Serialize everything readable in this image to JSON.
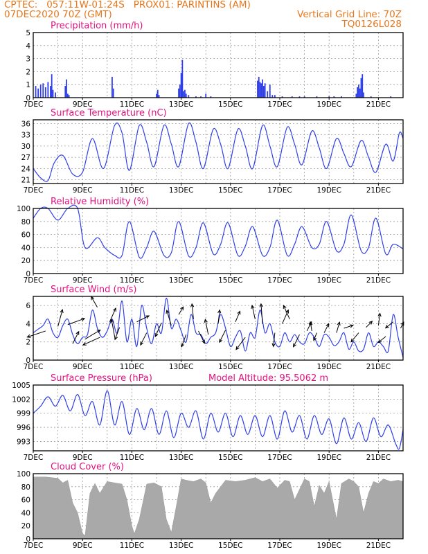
{
  "header": {
    "left_line1": "CPTEC:   057:11W-01:24S   PROX01: PARINTINS (AM)",
    "left_line2": "07DEC2020 70Z (GMT)",
    "right_line2": "Vertical Grid Line: 70Z",
    "right_line3": "TQ0126L028"
  },
  "colors": {
    "header": "#e8761a",
    "title": "#e0117f",
    "series": "#2f3fe8",
    "cloud": "#a9a9a9",
    "arrow": "#000000"
  },
  "chart_data": [
    {
      "type": "bar",
      "title": "Precipitation (mm/h)",
      "x_tick_labels": [
        "7DEC",
        "9DEC",
        "11DEC",
        "13DEC",
        "15DEC",
        "17DEC",
        "19DEC",
        "21DEC"
      ],
      "x_range_days": [
        7,
        22
      ],
      "ylim": [
        0,
        5
      ],
      "y_ticks": [
        "0",
        "1",
        "2",
        "3",
        "4",
        "5"
      ],
      "grid": true,
      "x": [
        7.1,
        7.2,
        7.3,
        7.4,
        7.5,
        7.6,
        7.7,
        7.75,
        7.8,
        7.9,
        8.3,
        8.35,
        8.4,
        8.45,
        10.2,
        10.25,
        12.0,
        12.05,
        12.1,
        12.9,
        12.95,
        13.0,
        13.05,
        13.1,
        13.15,
        13.2,
        13.3,
        13.6,
        13.8,
        14.0,
        14.2,
        16.1,
        16.15,
        16.2,
        16.25,
        16.3,
        16.35,
        16.4,
        16.5,
        16.6,
        16.7,
        16.8,
        17.1,
        17.5,
        17.8,
        18.0,
        18.5,
        19.0,
        19.2,
        19.5,
        20.1,
        20.15,
        20.2,
        20.25,
        20.3,
        20.35,
        20.4,
        20.7,
        21.5
      ],
      "values": [
        0.9,
        0.7,
        1.0,
        1.1,
        0.8,
        1.2,
        0.9,
        1.8,
        0.6,
        0.4,
        0.9,
        1.4,
        0.3,
        0.2,
        1.6,
        0.7,
        0.3,
        0.6,
        0.2,
        0.7,
        1.0,
        1.9,
        2.9,
        0.5,
        0.6,
        0.3,
        0.2,
        0.1,
        0.1,
        0.3,
        0.1,
        1.3,
        1.6,
        1.2,
        1.1,
        1.4,
        0.9,
        1.1,
        0.5,
        1.0,
        0.2,
        0.2,
        0.1,
        0.1,
        0.1,
        0.1,
        0.1,
        0.1,
        0.1,
        0.1,
        0.3,
        0.8,
        1.0,
        0.7,
        1.5,
        1.8,
        0.4,
        0.1,
        0.1
      ]
    },
    {
      "type": "line",
      "title": "Surface Temperature (nC)",
      "x_tick_labels": [
        "7DEC",
        "9DEC",
        "11DEC",
        "13DEC",
        "15DEC",
        "17DEC",
        "19DEC",
        "21DEC"
      ],
      "x_range_days": [
        7,
        22
      ],
      "ylim": [
        20,
        37
      ],
      "y_ticks": [
        "21",
        "24",
        "27",
        "30",
        "33",
        "36"
      ],
      "grid": true,
      "x": [
        7.0,
        7.3,
        7.6,
        7.85,
        8.2,
        8.6,
        9.0,
        9.4,
        9.85,
        10.3,
        10.6,
        10.9,
        11.3,
        11.6,
        11.9,
        12.3,
        12.6,
        12.9,
        13.3,
        13.6,
        13.9,
        14.3,
        14.6,
        14.9,
        15.3,
        15.6,
        15.9,
        16.3,
        16.6,
        16.9,
        17.3,
        17.6,
        17.9,
        18.3,
        18.6,
        18.9,
        19.3,
        19.6,
        19.9,
        20.3,
        20.6,
        20.9,
        21.3,
        21.6,
        21.85,
        22.0
      ],
      "values": [
        24.0,
        21.5,
        20.8,
        25.5,
        27.5,
        22.5,
        23.0,
        32.0,
        24.0,
        35.5,
        33.5,
        23.5,
        35.5,
        31.0,
        24.5,
        35.5,
        30.5,
        24.5,
        36.0,
        31.0,
        24.0,
        34.5,
        30.5,
        24.0,
        34.5,
        30.0,
        24.0,
        35.5,
        30.0,
        24.5,
        35.0,
        30.5,
        25.0,
        34.0,
        29.5,
        24.0,
        32.0,
        28.0,
        24.5,
        31.5,
        27.0,
        23.0,
        30.5,
        26.0,
        33.5,
        32.0
      ]
    },
    {
      "type": "line",
      "title": "Relative Humidity (%)",
      "x_tick_labels": [
        "7DEC",
        "9DEC",
        "11DEC",
        "13DEC",
        "15DEC",
        "17DEC",
        "19DEC",
        "21DEC"
      ],
      "x_range_days": [
        7,
        22
      ],
      "ylim": [
        0,
        100
      ],
      "y_ticks": [
        "0",
        "20",
        "40",
        "60",
        "80",
        "100"
      ],
      "grid": true,
      "x": [
        7.0,
        7.3,
        7.6,
        8.0,
        8.4,
        8.8,
        9.1,
        9.6,
        9.9,
        10.3,
        10.6,
        10.9,
        11.3,
        11.6,
        11.9,
        12.3,
        12.6,
        12.9,
        13.3,
        13.6,
        13.9,
        14.3,
        14.6,
        14.9,
        15.3,
        15.6,
        15.9,
        16.3,
        16.6,
        16.9,
        17.3,
        17.6,
        17.9,
        18.3,
        18.6,
        18.9,
        19.3,
        19.6,
        19.9,
        20.3,
        20.6,
        20.9,
        21.3,
        21.6,
        22.0
      ],
      "values": [
        85,
        100,
        100,
        82,
        100,
        100,
        40,
        55,
        40,
        28,
        28,
        80,
        25,
        40,
        65,
        28,
        32,
        80,
        27,
        40,
        78,
        30,
        45,
        78,
        28,
        42,
        72,
        28,
        40,
        82,
        28,
        45,
        72,
        40,
        45,
        80,
        35,
        45,
        90,
        35,
        40,
        85,
        30,
        45,
        38
      ]
    },
    {
      "type": "line",
      "title": "Surface Wind (m/s)",
      "x_tick_labels": [
        "7DEC",
        "9DEC",
        "11DEC",
        "13DEC",
        "15DEC",
        "17DEC",
        "19DEC",
        "21DEC"
      ],
      "x_range_days": [
        7,
        22
      ],
      "ylim": [
        0,
        7
      ],
      "y_ticks": [
        "0",
        "2",
        "4",
        "6"
      ],
      "grid": true,
      "x": [
        7.0,
        7.2,
        7.4,
        7.6,
        7.8,
        8.0,
        8.2,
        8.4,
        8.6,
        8.8,
        9.0,
        9.2,
        9.4,
        9.6,
        9.8,
        10.0,
        10.2,
        10.4,
        10.6,
        10.8,
        11.0,
        11.2,
        11.4,
        11.6,
        11.8,
        12.0,
        12.2,
        12.4,
        12.6,
        12.8,
        13.0,
        13.2,
        13.4,
        13.6,
        13.8,
        14.0,
        14.2,
        14.4,
        14.6,
        14.8,
        15.0,
        15.2,
        15.4,
        15.6,
        15.8,
        16.0,
        16.2,
        16.4,
        16.6,
        16.8,
        17.0,
        17.2,
        17.4,
        17.6,
        17.8,
        18.0,
        18.2,
        18.4,
        18.6,
        18.8,
        19.0,
        19.2,
        19.4,
        19.6,
        19.8,
        20.0,
        20.2,
        20.4,
        20.6,
        20.8,
        21.0,
        21.2,
        21.4,
        21.6,
        21.8,
        22.0
      ],
      "values": [
        3.0,
        3.4,
        3.8,
        4.5,
        3.0,
        2.5,
        3.8,
        4.5,
        2.8,
        1.8,
        2.5,
        2.8,
        5.5,
        3.5,
        2.5,
        3.2,
        4.5,
        3.0,
        6.5,
        2.0,
        4.5,
        1.5,
        6.0,
        3.5,
        1.8,
        4.0,
        3.0,
        6.8,
        3.5,
        4.5,
        3.2,
        2.0,
        5.0,
        3.0,
        2.8,
        1.8,
        2.5,
        3.0,
        5.0,
        3.5,
        1.5,
        2.5,
        3.2,
        1.0,
        3.0,
        2.5,
        5.5,
        3.0,
        4.0,
        2.0,
        1.5,
        3.0,
        2.0,
        2.8,
        2.0,
        1.8,
        3.0,
        2.5,
        1.5,
        2.8,
        2.5,
        1.6,
        2.0,
        3.0,
        1.2,
        2.0,
        1.0,
        1.2,
        3.0,
        1.5,
        2.0,
        1.5,
        1.0,
        5.0,
        2.5,
        0.3
      ],
      "arrows": [
        {
          "x": 7.5,
          "y": 3.2,
          "u": -1.2,
          "v": -0.4
        },
        {
          "x": 8.0,
          "y": 3.7,
          "u": 0.3,
          "v": 1.1
        },
        {
          "x": 8.4,
          "y": 3.9,
          "u": 1.1,
          "v": 0.4
        },
        {
          "x": 8.6,
          "y": 1.8,
          "u": 0.4,
          "v": 0.8
        },
        {
          "x": 9.1,
          "y": 2.3,
          "u": 1.0,
          "v": 0.6
        },
        {
          "x": 9.6,
          "y": 5.8,
          "u": -0.4,
          "v": 0.7
        },
        {
          "x": 9.7,
          "y": 2.5,
          "u": -1.1,
          "v": -0.5
        },
        {
          "x": 10.1,
          "y": 4.2,
          "u": 0.4,
          "v": 0.9
        },
        {
          "x": 10.3,
          "y": 2.6,
          "u": -0.2,
          "v": 1.1
        },
        {
          "x": 10.5,
          "y": 3.6,
          "u": -0.3,
          "v": -0.8
        },
        {
          "x": 11.2,
          "y": 4.2,
          "u": 0.8,
          "v": 0.4
        },
        {
          "x": 11.6,
          "y": 3.0,
          "u": -0.4,
          "v": -0.8
        },
        {
          "x": 12.2,
          "y": 4.1,
          "u": -0.4,
          "v": -0.9
        },
        {
          "x": 12.6,
          "y": 3.8,
          "u": -0.3,
          "v": 1.0
        },
        {
          "x": 12.9,
          "y": 5.0,
          "u": 0.3,
          "v": 0.5
        },
        {
          "x": 13.2,
          "y": 2.8,
          "u": -0.3,
          "v": -0.8
        },
        {
          "x": 13.5,
          "y": 4.5,
          "u": -0.1,
          "v": 1.0
        },
        {
          "x": 13.7,
          "y": 3.2,
          "u": 0.4,
          "v": -0.8
        },
        {
          "x": 14.1,
          "y": 2.8,
          "u": -0.2,
          "v": 1.0
        },
        {
          "x": 14.5,
          "y": 4.0,
          "u": 0.1,
          "v": 0.9
        },
        {
          "x": 14.8,
          "y": 3.3,
          "u": -0.4,
          "v": -0.8
        },
        {
          "x": 15.2,
          "y": 4.2,
          "u": 0.3,
          "v": 0.7
        },
        {
          "x": 15.6,
          "y": 2.5,
          "u": -0.6,
          "v": -0.8
        },
        {
          "x": 16.0,
          "y": 4.5,
          "u": -0.2,
          "v": 0.9
        },
        {
          "x": 16.3,
          "y": 4.0,
          "u": -0.1,
          "v": 1.3
        },
        {
          "x": 16.8,
          "y": 3.0,
          "u": -0.1,
          "v": -0.9
        },
        {
          "x": 17.1,
          "y": 4.0,
          "u": 0.4,
          "v": 0.9
        },
        {
          "x": 17.4,
          "y": 4.5,
          "u": -0.4,
          "v": 0.9
        },
        {
          "x": 17.8,
          "y": 2.8,
          "u": -0.4,
          "v": -0.8
        },
        {
          "x": 18.1,
          "y": 3.2,
          "u": 0.3,
          "v": 0.6
        },
        {
          "x": 18.3,
          "y": 3.2,
          "u": -0.1,
          "v": 0.6
        },
        {
          "x": 18.5,
          "y": 3.0,
          "u": -0.2,
          "v": -0.5
        },
        {
          "x": 18.8,
          "y": 3.0,
          "u": 0.3,
          "v": 0.6
        },
        {
          "x": 19.3,
          "y": 3.0,
          "u": 0.2,
          "v": 0.7
        },
        {
          "x": 19.6,
          "y": 3.5,
          "u": 0.6,
          "v": 0.2
        },
        {
          "x": 20.2,
          "y": 3.0,
          "u": -0.5,
          "v": -0.6
        },
        {
          "x": 20.5,
          "y": 3.6,
          "u": 0.4,
          "v": 0.4
        },
        {
          "x": 21.0,
          "y": 3.8,
          "u": 0.1,
          "v": 0.8
        },
        {
          "x": 21.3,
          "y": 2.6,
          "u": -0.5,
          "v": -0.4
        },
        {
          "x": 21.6,
          "y": 4.2,
          "u": -0.5,
          "v": -0.4
        },
        {
          "x": 21.9,
          "y": 3.5,
          "u": 0.2,
          "v": 0.4
        }
      ]
    },
    {
      "type": "line",
      "title": "Surface Pressure (hPa)",
      "annotation": "Model Altitude: 95.5062 m",
      "x_tick_labels": [
        "7DEC",
        "9DEC",
        "11DEC",
        "13DEC",
        "15DEC",
        "17DEC",
        "19DEC",
        "21DEC"
      ],
      "x_range_days": [
        7,
        22
      ],
      "ylim": [
        991,
        1005
      ],
      "y_ticks": [
        "993",
        "996",
        "999",
        "1002",
        "1005"
      ],
      "grid": true,
      "x": [
        7.0,
        7.3,
        7.6,
        7.9,
        8.2,
        8.5,
        8.8,
        9.1,
        9.4,
        9.7,
        10.0,
        10.3,
        10.6,
        10.9,
        11.2,
        11.5,
        11.8,
        12.1,
        12.4,
        12.7,
        13.0,
        13.3,
        13.6,
        13.9,
        14.2,
        14.5,
        14.8,
        15.1,
        15.4,
        15.7,
        16.0,
        16.3,
        16.6,
        16.9,
        17.2,
        17.5,
        17.8,
        18.1,
        18.4,
        18.7,
        19.0,
        19.3,
        19.6,
        19.9,
        20.2,
        20.5,
        20.8,
        21.1,
        21.4,
        21.7,
        21.85,
        22.0
      ],
      "values": [
        999.0,
        1000.5,
        1002.5,
        1000.5,
        1002.8,
        999.5,
        1003.0,
        998.5,
        1001.5,
        996.5,
        1003.8,
        996.5,
        1001.5,
        994.5,
        1000.0,
        995.5,
        1000.0,
        994.5,
        999.5,
        993.8,
        999.0,
        996.0,
        999.5,
        993.5,
        999.0,
        995.0,
        999.0,
        994.0,
        998.5,
        994.5,
        998.5,
        994.0,
        998.5,
        993.5,
        999.5,
        995.0,
        998.5,
        993.5,
        998.5,
        994.5,
        997.8,
        992.5,
        998.0,
        993.5,
        997.0,
        993.0,
        998.0,
        994.0,
        996.5,
        992.5,
        991.5,
        995.5
      ]
    },
    {
      "type": "area",
      "title": "Cloud Cover (%)",
      "x_tick_labels": [
        "7DEC",
        "9DEC",
        "11DEC",
        "13DEC",
        "15DEC",
        "17DEC",
        "19DEC",
        "21DEC"
      ],
      "x_range_days": [
        7,
        22
      ],
      "ylim": [
        0,
        100
      ],
      "y_ticks": [
        "0",
        "20",
        "40",
        "60",
        "80",
        "100"
      ],
      "grid": true,
      "x": [
        7.0,
        7.5,
        8.0,
        8.2,
        8.4,
        8.6,
        8.8,
        9.0,
        9.1,
        9.3,
        9.5,
        9.7,
        10.0,
        10.3,
        10.6,
        10.8,
        11.0,
        11.1,
        11.3,
        11.6,
        11.9,
        12.2,
        12.4,
        12.6,
        12.8,
        13.0,
        13.2,
        13.5,
        13.8,
        14.0,
        14.2,
        14.4,
        14.8,
        15.2,
        15.6,
        16.0,
        16.3,
        16.6,
        16.9,
        17.2,
        17.4,
        17.6,
        18.0,
        18.2,
        18.4,
        18.6,
        18.8,
        19.0,
        19.3,
        19.5,
        19.8,
        20.0,
        20.2,
        20.4,
        20.6,
        20.8,
        21.0,
        21.2,
        21.5,
        21.8,
        22.0
      ],
      "values": [
        95,
        95,
        93,
        86,
        90,
        55,
        40,
        8,
        5,
        70,
        85,
        70,
        88,
        86,
        84,
        60,
        20,
        8,
        30,
        84,
        86,
        80,
        30,
        10,
        50,
        92,
        90,
        88,
        92,
        86,
        55,
        70,
        90,
        88,
        90,
        94,
        88,
        92,
        78,
        90,
        88,
        60,
        92,
        88,
        50,
        82,
        70,
        88,
        30,
        85,
        92,
        88,
        80,
        40,
        70,
        88,
        85,
        92,
        88,
        90,
        88
      ]
    }
  ]
}
